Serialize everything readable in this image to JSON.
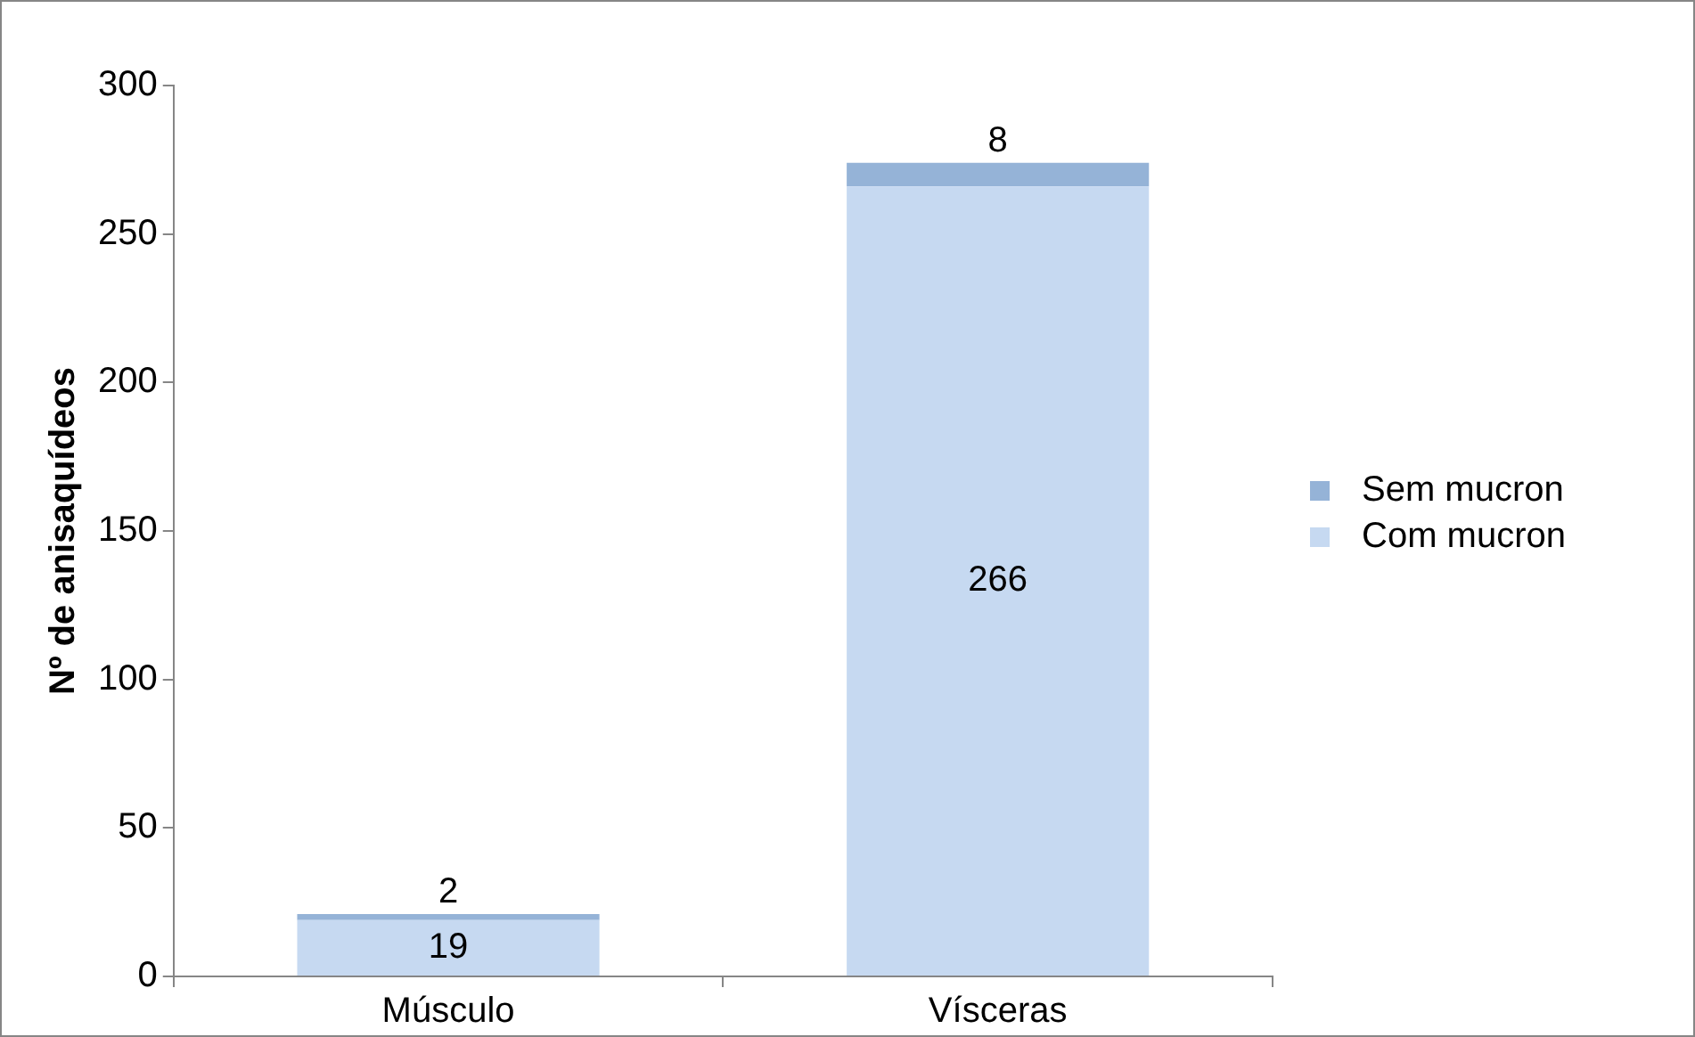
{
  "chart_data": {
    "type": "bar",
    "stacked": true,
    "ylabel": "Nº de anisaquídeos",
    "categories": [
      "Músculo",
      "Vísceras"
    ],
    "series": [
      {
        "name": "Com mucron",
        "color": "#c6d9f1",
        "values": [
          19,
          266
        ]
      },
      {
        "name": "Sem mucron",
        "color": "#95b3d7",
        "values": [
          2,
          8
        ]
      }
    ],
    "ylim": [
      0,
      300
    ],
    "yticks": [
      0,
      50,
      100,
      150,
      200,
      250,
      300
    ],
    "grid": false,
    "legend": "right",
    "data_labels": true
  }
}
